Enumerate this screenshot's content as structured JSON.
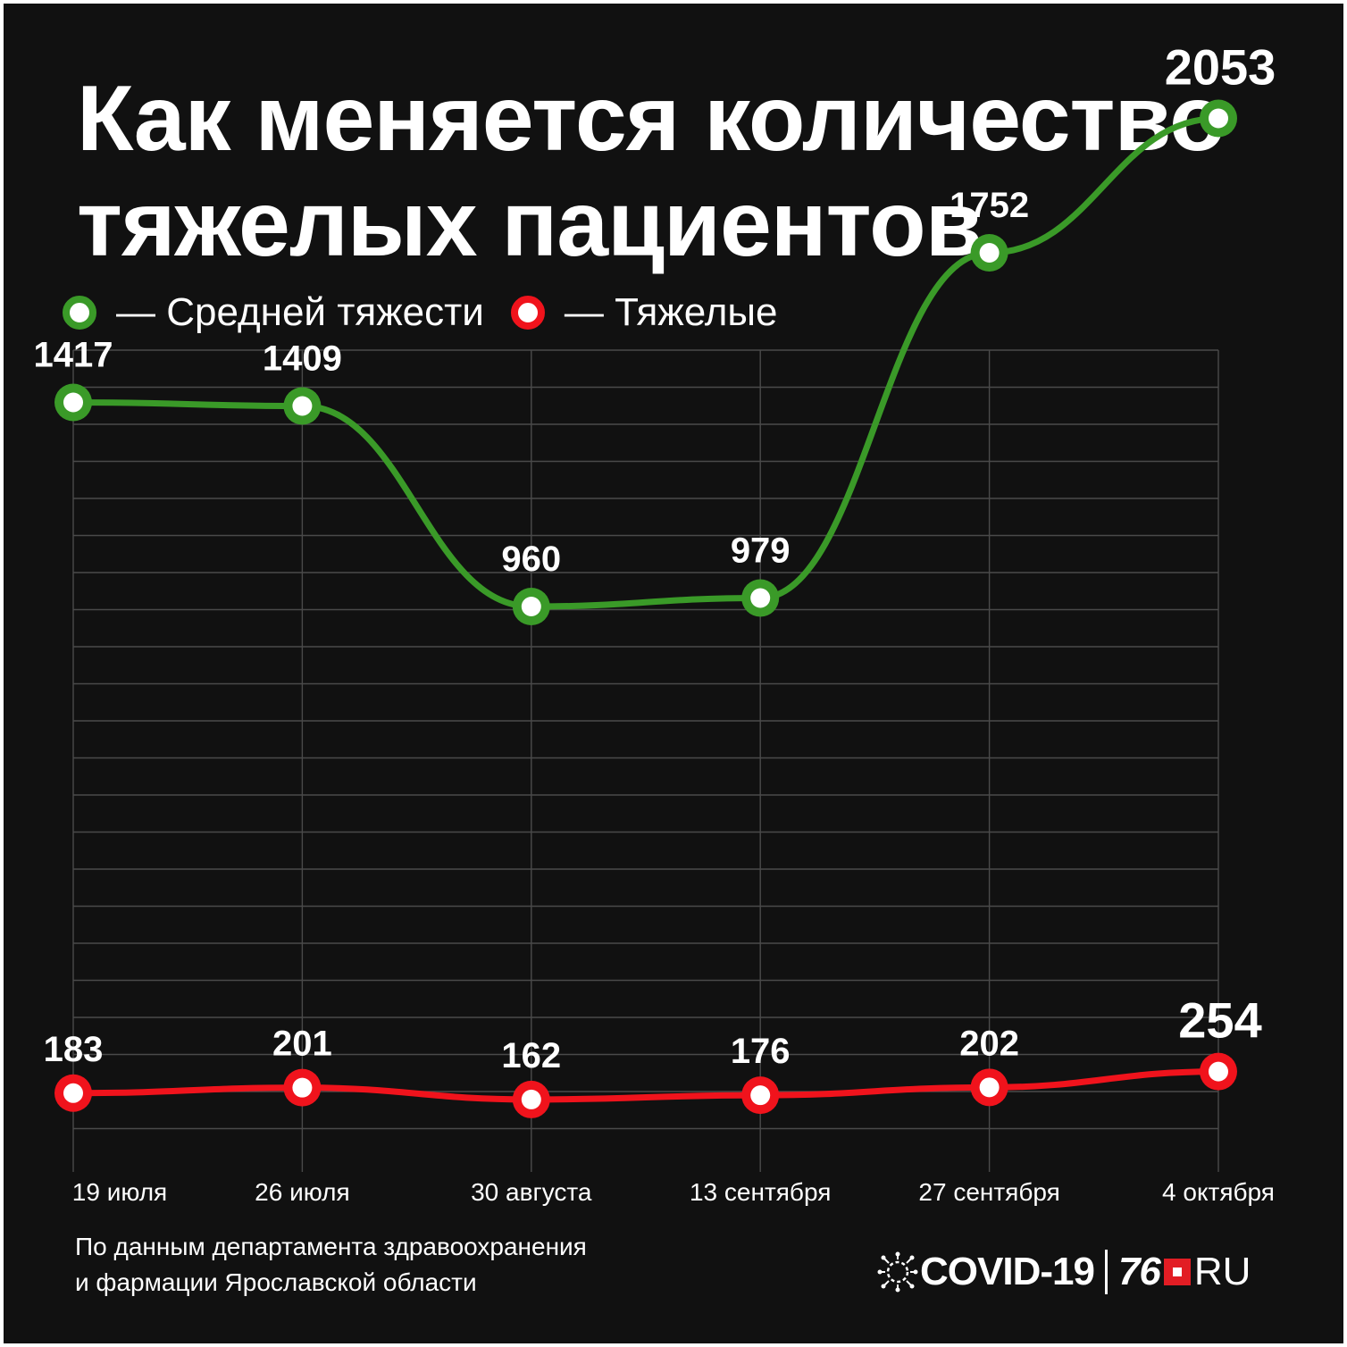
{
  "title_lines": [
    "Как меняется количество",
    "тяжелых пациентов"
  ],
  "legend": [
    {
      "label": "— Средней тяжести",
      "color": "#3a9a28"
    },
    {
      "label": "— Тяжелые",
      "color": "#f0131c"
    }
  ],
  "chart_data": {
    "type": "line",
    "categories": [
      "19 июля",
      "26 июля",
      "30 августа",
      "13 сентября",
      "27 сентября",
      "4 октября"
    ],
    "series": [
      {
        "name": "Средней тяжести",
        "color": "#3a9a28",
        "values": [
          1417,
          1409,
          960,
          979,
          1752,
          2053
        ]
      },
      {
        "name": "Тяжелые",
        "color": "#f0131c",
        "values": [
          183,
          201,
          162,
          176,
          202,
          254
        ]
      }
    ],
    "grid": true,
    "legend_position": "top-left"
  },
  "source": [
    "По данным департамента здравоохранения",
    "и фармации Ярославской области"
  ],
  "logo": {
    "covid": "COVID-19",
    "num": "76",
    "ru": "RU"
  }
}
